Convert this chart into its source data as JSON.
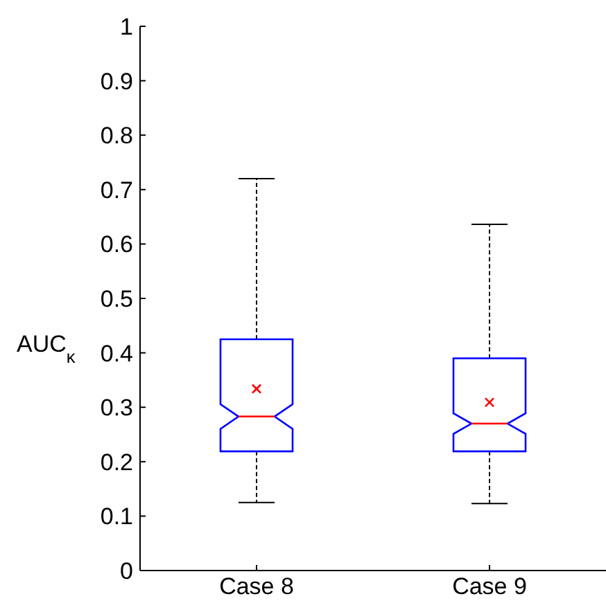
{
  "chart_data": {
    "type": "box",
    "ylabel": "AUC$_{κ}$",
    "categories": [
      "Case 8",
      "Case 9"
    ],
    "ylim": [
      0,
      1
    ],
    "yticks": [
      0,
      0.1,
      0.2,
      0.3,
      0.4,
      0.5,
      0.6,
      0.7,
      0.8,
      0.9,
      1
    ],
    "boxes": [
      {
        "low": 0.125,
        "q1": 0.219,
        "median": 0.283,
        "q3": 0.425,
        "high": 0.72,
        "mean": 0.334
      },
      {
        "low": 0.123,
        "q1": 0.219,
        "median": 0.27,
        "q3": 0.39,
        "high": 0.636,
        "mean": 0.309
      }
    ],
    "grid": false
  }
}
